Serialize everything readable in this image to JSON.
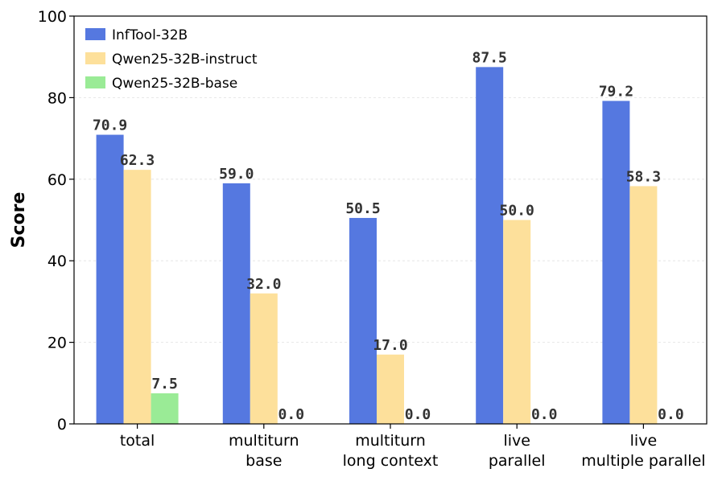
{
  "chart_data": {
    "type": "bar",
    "title": "",
    "xlabel": "",
    "ylabel": "Score",
    "ylim": [
      0,
      100
    ],
    "yticks": [
      0,
      20,
      40,
      60,
      80,
      100
    ],
    "grid": true,
    "legend_position": "top-left",
    "categories": [
      [
        "total"
      ],
      [
        "multiturn",
        "base"
      ],
      [
        "multiturn",
        "long context"
      ],
      [
        "live",
        "parallel"
      ],
      [
        "live",
        "multiple parallel"
      ]
    ],
    "series": [
      {
        "name": "InfTool-32B",
        "color": "#5578e0",
        "values": [
          70.9,
          59.0,
          50.5,
          87.5,
          79.2
        ],
        "labels": [
          "70.9",
          "59.0",
          "50.5",
          "87.5",
          "79.2"
        ]
      },
      {
        "name": "Qwen25-32B-instruct",
        "color": "#fde09b",
        "values": [
          62.3,
          32.0,
          17.0,
          50.0,
          58.3
        ],
        "labels": [
          "62.3",
          "32.0",
          "17.0",
          "50.0",
          "58.3"
        ]
      },
      {
        "name": "Qwen25-32B-base",
        "color": "#9aeb96",
        "values": [
          7.5,
          0.0,
          0.0,
          0.0,
          0.0
        ],
        "labels": [
          "7.5",
          "0.0",
          "0.0",
          "0.0",
          "0.0"
        ]
      }
    ]
  }
}
